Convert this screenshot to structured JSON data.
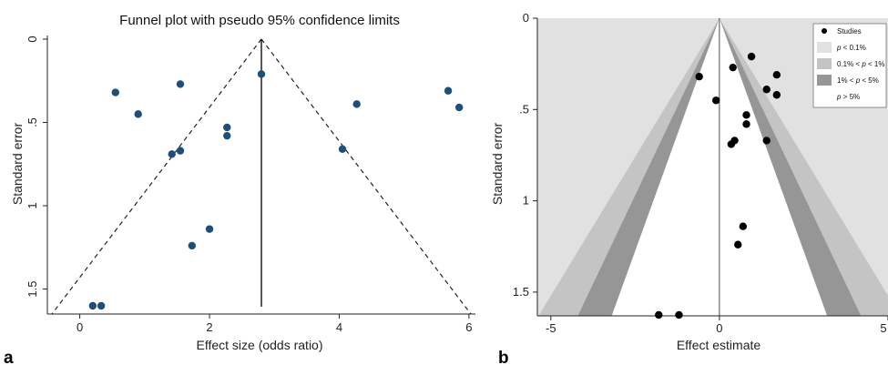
{
  "panel_labels": [
    "a",
    "b"
  ],
  "chart_data": [
    {
      "type": "scatter",
      "title": "Funnel plot with pseudo 95% confidence limits",
      "xlabel": "Effect size (odds ratio)",
      "ylabel": "Standard error",
      "xlim": [
        -0.5,
        6.1
      ],
      "ylim": [
        0,
        1.65
      ],
      "y_inverted": true,
      "xticks": [
        0,
        2,
        4,
        6
      ],
      "yticks": [
        0,
        0.5,
        1,
        1.5
      ],
      "ytick_labels": [
        "0",
        ".5",
        "1",
        "1.5"
      ],
      "pooled_estimate": 2.8,
      "funnel_limits": {
        "apex": [
          2.8,
          0
        ],
        "base_left": [
          -0.43,
          1.65
        ],
        "base_right": [
          6.03,
          1.65
        ]
      },
      "point_color": "#1f4e79",
      "points": [
        {
          "x": 0.55,
          "y": 0.32
        },
        {
          "x": 0.9,
          "y": 0.45
        },
        {
          "x": 1.55,
          "y": 0.27
        },
        {
          "x": 2.8,
          "y": 0.21
        },
        {
          "x": 2.27,
          "y": 0.53
        },
        {
          "x": 2.27,
          "y": 0.58
        },
        {
          "x": 1.55,
          "y": 0.67
        },
        {
          "x": 1.42,
          "y": 0.69
        },
        {
          "x": 4.27,
          "y": 0.39
        },
        {
          "x": 4.05,
          "y": 0.66
        },
        {
          "x": 5.68,
          "y": 0.31
        },
        {
          "x": 5.85,
          "y": 0.41
        },
        {
          "x": 2.0,
          "y": 1.14
        },
        {
          "x": 1.73,
          "y": 1.24
        },
        {
          "x": 0.2,
          "y": 1.65
        },
        {
          "x": 0.33,
          "y": 1.65
        }
      ]
    },
    {
      "type": "scatter",
      "title": "",
      "xlabel": "Effect estimate",
      "ylabel": "Standard error",
      "xlim": [
        -5.4,
        5.0
      ],
      "ylim": [
        0,
        1.63
      ],
      "y_inverted": true,
      "xticks": [
        -5,
        0,
        5
      ],
      "yticks": [
        0,
        0.5,
        1,
        1.5
      ],
      "ytick_labels": [
        "0",
        ".5",
        "1",
        "1.5"
      ],
      "contour_center": 0,
      "contour_colors": {
        "background": "#e1e1e1",
        "p_lt_01": "#c4c4c4",
        "p_01_1": "#969696",
        "p_1_5": "#ffffff"
      },
      "z_values": {
        "p_01": 3.29,
        "p_1": 2.576,
        "p_5": 1.96
      },
      "point_color": "#000000",
      "points": [
        {
          "x": 0.95,
          "y": 0.21
        },
        {
          "x": 0.4,
          "y": 0.27
        },
        {
          "x": -0.6,
          "y": 0.32
        },
        {
          "x": 1.7,
          "y": 0.31
        },
        {
          "x": 1.4,
          "y": 0.39
        },
        {
          "x": 1.7,
          "y": 0.42
        },
        {
          "x": -0.1,
          "y": 0.45
        },
        {
          "x": 0.8,
          "y": 0.53
        },
        {
          "x": 0.8,
          "y": 0.58
        },
        {
          "x": 0.45,
          "y": 0.67
        },
        {
          "x": 0.35,
          "y": 0.69
        },
        {
          "x": 1.4,
          "y": 0.67
        },
        {
          "x": 0.7,
          "y": 1.14
        },
        {
          "x": 0.55,
          "y": 1.24
        },
        {
          "x": -1.8,
          "y": 1.63
        },
        {
          "x": -1.2,
          "y": 1.63
        }
      ],
      "legend": {
        "placement": "top-right",
        "items": [
          {
            "key": "studies",
            "text": "Studies"
          },
          {
            "key": "p_lt_01",
            "italic": "p",
            "text": " < 0.1%"
          },
          {
            "key": "p_01_1",
            "pre": "0.1% < ",
            "italic": "p",
            "text": " < 1%"
          },
          {
            "key": "p_1_5",
            "pre": "1% < ",
            "italic": "p",
            "text": " < 5%"
          },
          {
            "key": "p_gt_5",
            "italic": "p",
            "text": " > 5%"
          }
        ]
      }
    }
  ]
}
